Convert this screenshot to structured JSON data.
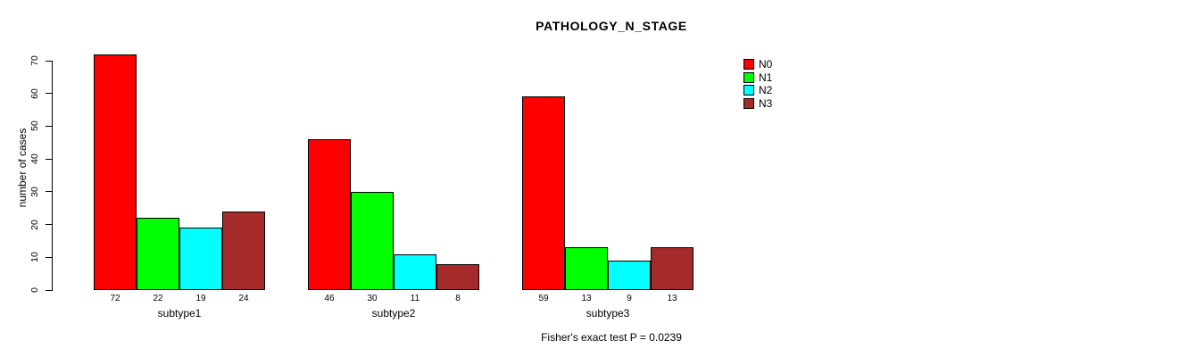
{
  "title": "PATHOLOGY_N_STAGE",
  "footer": "Fisher's exact test P = 0.0239",
  "y_axis": {
    "label": "number of cases",
    "ticks": [
      0,
      10,
      20,
      30,
      40,
      50,
      60,
      70
    ]
  },
  "legend": {
    "items": [
      {
        "label": "N0",
        "color": "#FF0000"
      },
      {
        "label": "N1",
        "color": "#00FF00"
      },
      {
        "label": "N2",
        "color": "#00FFFF"
      },
      {
        "label": "N3",
        "color": "#A52A2A"
      }
    ]
  },
  "chart_data": {
    "type": "bar",
    "title": "PATHOLOGY_N_STAGE",
    "categories": [
      "subtype1",
      "subtype2",
      "subtype3"
    ],
    "series": [
      {
        "name": "N0",
        "color": "#FF0000",
        "values": [
          72,
          46,
          59
        ]
      },
      {
        "name": "N1",
        "color": "#00FF00",
        "values": [
          22,
          30,
          13
        ]
      },
      {
        "name": "N2",
        "color": "#00FFFF",
        "values": [
          19,
          11,
          9
        ]
      },
      {
        "name": "N3",
        "color": "#A52A2A",
        "values": [
          24,
          8,
          13
        ]
      }
    ],
    "bar_value_labels_shown": true,
    "xlabel": "",
    "ylabel": "number of cases",
    "ylim": [
      0,
      70
    ],
    "grid": false,
    "legend_position": "right",
    "annotation": "Fisher's exact test P = 0.0239"
  }
}
